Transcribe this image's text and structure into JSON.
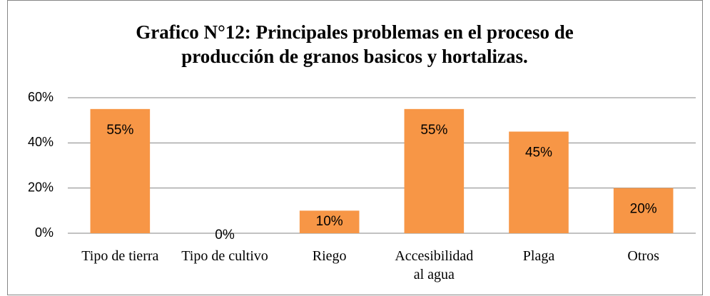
{
  "chart_data": {
    "type": "bar",
    "title": [
      "Grafico N°12: Principales problemas  en el proceso de",
      "producción de granos basicos y hortalizas."
    ],
    "categories": [
      "Tipo de tierra",
      "Tipo de cultivo",
      "Riego",
      "Accesibilidad al agua",
      "Plaga",
      "Otros"
    ],
    "values": [
      55,
      0,
      10,
      55,
      45,
      20
    ],
    "value_labels": [
      "55%",
      "0%",
      "10%",
      "55%",
      "45%",
      "20%"
    ],
    "color": "#f79646",
    "ylim": [
      0,
      60
    ],
    "yticks": [
      {
        "value": 0,
        "label": "0%"
      },
      {
        "value": 20,
        "label": "20%"
      },
      {
        "value": 40,
        "label": "40%"
      },
      {
        "value": 60,
        "label": "60%"
      }
    ],
    "grid": true
  }
}
